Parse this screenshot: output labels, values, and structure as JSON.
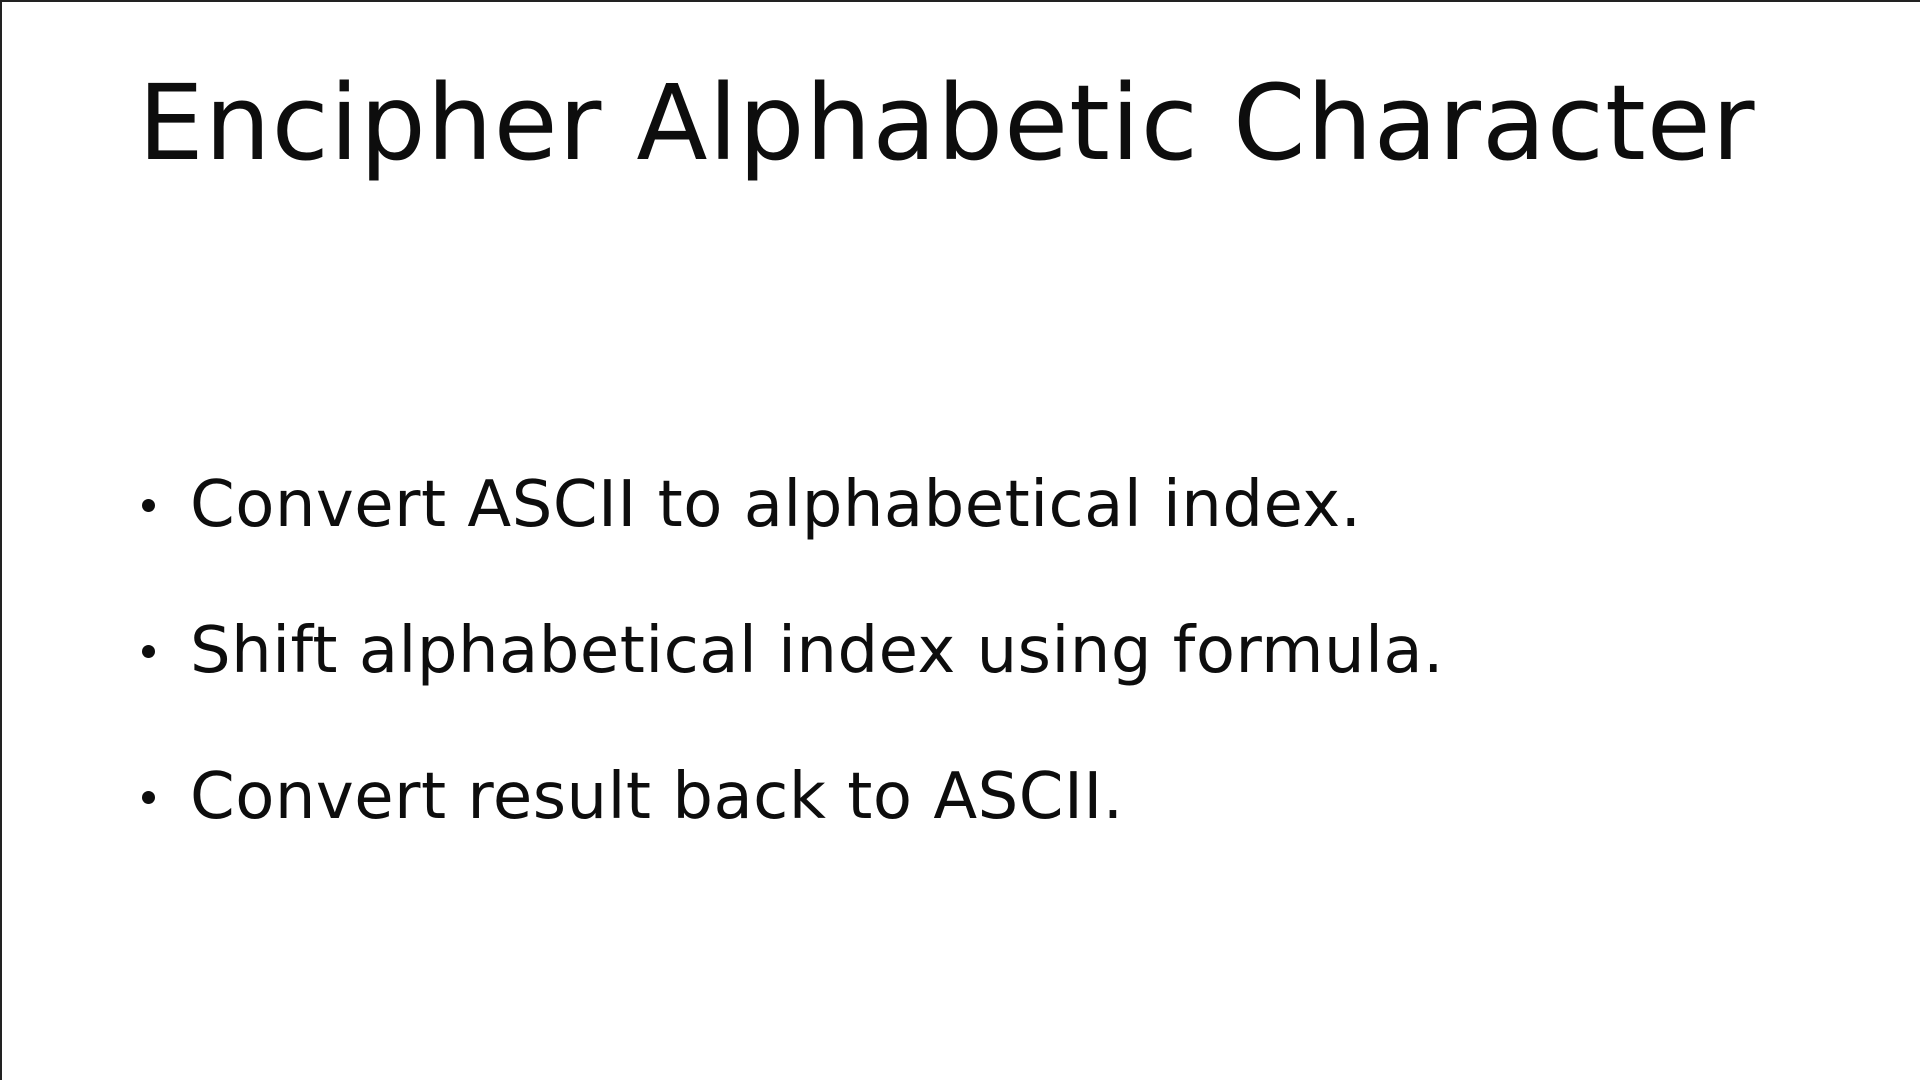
{
  "slide": {
    "title": "Encipher Alphabetic Character",
    "bullets": [
      {
        "text": "Convert ASCII to alphabetical index."
      },
      {
        "text": "Shift alphabetical index using formula."
      },
      {
        "text": "Convert result back to ASCII."
      }
    ]
  },
  "colors": {
    "background": "#ffffff",
    "text": "#0d0d0d",
    "border": "#222222"
  }
}
